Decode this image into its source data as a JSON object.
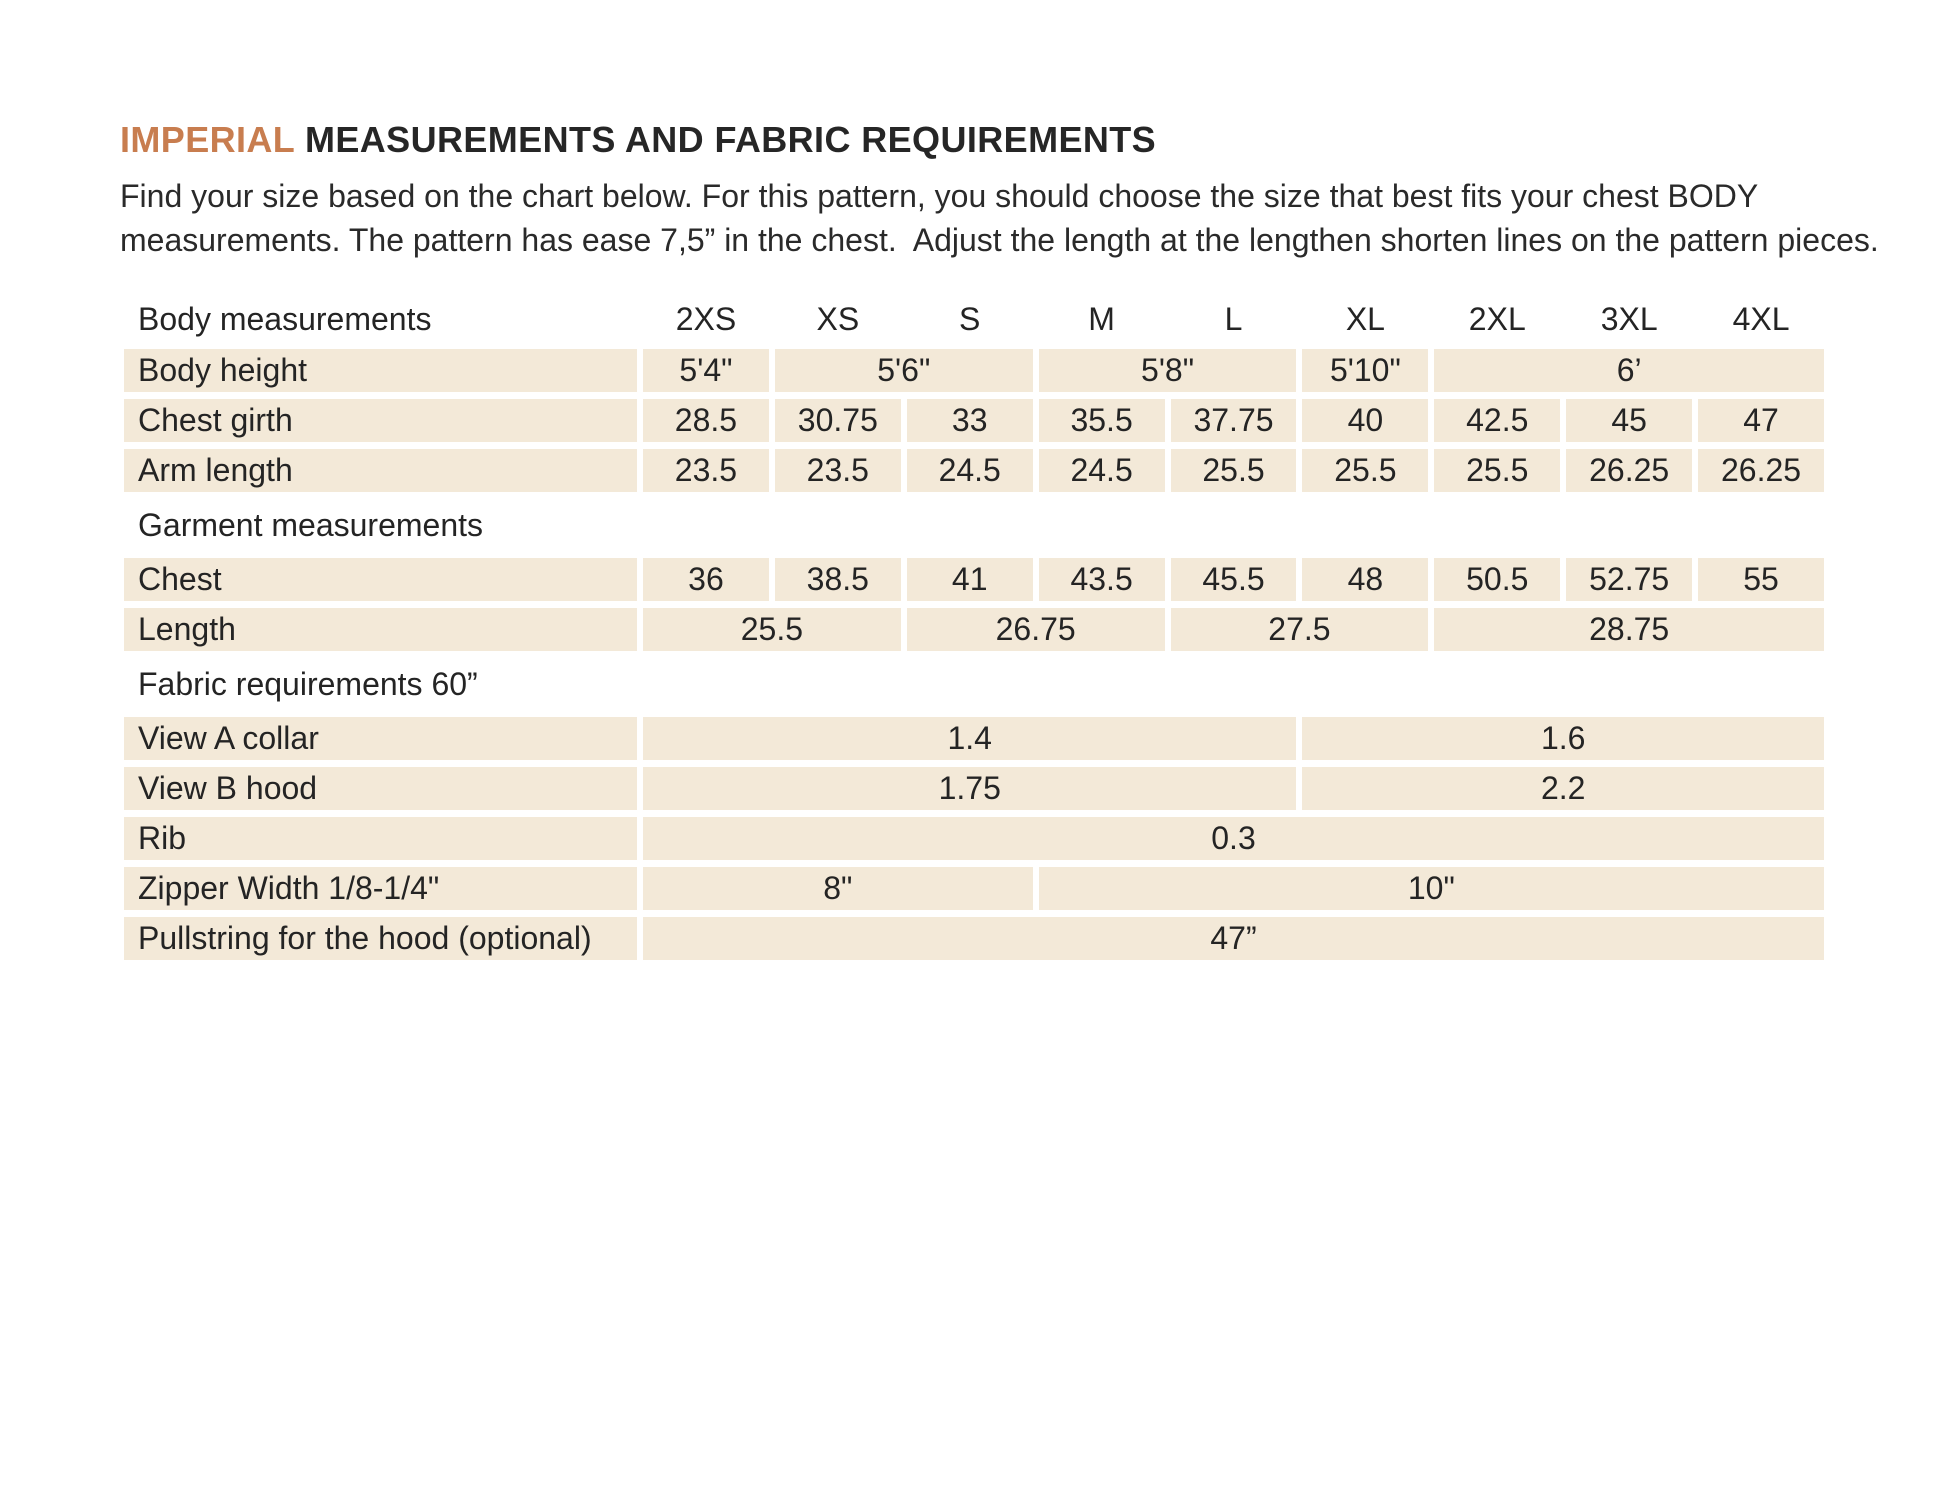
{
  "title": {
    "highlight": "IMPERIAL",
    "rest": " MEASUREMENTS AND FABRIC REQUIREMENTS"
  },
  "intro": "Find your size based on the chart below. For this pattern, you should choose the size that best fits your chest BODY measurements. The pattern has ease 7,5” in the chest.  Adjust the length at the lengthen shorten lines on the pattern pieces.",
  "colors": {
    "accent_orange": "#c87d4f",
    "row_beige": "#f3e9d8",
    "text_dark": "#262626"
  },
  "table": {
    "size_columns": [
      "2XS",
      "XS",
      "S",
      "M",
      "L",
      "XL",
      "2XL",
      "3XL",
      "4XL"
    ],
    "rows": [
      {
        "name": "header-row",
        "cells": [
          {
            "t": "Body measurements",
            "k": "colhead-label"
          },
          {
            "t": "2XS",
            "k": "colhead"
          },
          {
            "t": "XS",
            "k": "colhead"
          },
          {
            "t": "S",
            "k": "colhead"
          },
          {
            "t": "M",
            "k": "colhead"
          },
          {
            "t": "L",
            "k": "colhead"
          },
          {
            "t": "XL",
            "k": "colhead"
          },
          {
            "t": "2XL",
            "k": "colhead"
          },
          {
            "t": "3XL",
            "k": "colhead"
          },
          {
            "t": "4XL",
            "k": "colhead"
          }
        ]
      },
      {
        "name": "row-body-height",
        "cells": [
          {
            "t": "Body height",
            "k": "label"
          },
          {
            "t": "5'4\"",
            "k": "data",
            "s": 1
          },
          {
            "t": "5'6\"",
            "k": "data",
            "s": 2
          },
          {
            "t": "5'8\"",
            "k": "data",
            "s": 2
          },
          {
            "t": "5'10\"",
            "k": "data",
            "s": 1
          },
          {
            "t": "6’",
            "k": "data",
            "s": 3
          }
        ]
      },
      {
        "name": "row-chest-girth",
        "cells": [
          {
            "t": "Chest girth",
            "k": "label"
          },
          {
            "t": "28.5",
            "k": "data"
          },
          {
            "t": "30.75",
            "k": "data"
          },
          {
            "t": "33",
            "k": "data"
          },
          {
            "t": "35.5",
            "k": "data"
          },
          {
            "t": "37.75",
            "k": "data"
          },
          {
            "t": "40",
            "k": "data"
          },
          {
            "t": "42.5",
            "k": "data"
          },
          {
            "t": "45",
            "k": "data"
          },
          {
            "t": "47",
            "k": "data"
          }
        ]
      },
      {
        "name": "row-arm-length",
        "cells": [
          {
            "t": "Arm length",
            "k": "label"
          },
          {
            "t": "23.5",
            "k": "data"
          },
          {
            "t": "23.5",
            "k": "data"
          },
          {
            "t": "24.5",
            "k": "data"
          },
          {
            "t": "24.5",
            "k": "data"
          },
          {
            "t": "25.5",
            "k": "data"
          },
          {
            "t": "25.5",
            "k": "data"
          },
          {
            "t": "25.5",
            "k": "data"
          },
          {
            "t": "26.25",
            "k": "data"
          },
          {
            "t": "26.25",
            "k": "data"
          }
        ]
      },
      {
        "name": "section-garment-measurements",
        "cells": [
          {
            "t": "Garment measurements",
            "k": "section",
            "s": 10
          }
        ]
      },
      {
        "name": "row-chest",
        "cells": [
          {
            "t": "Chest",
            "k": "label"
          },
          {
            "t": "36",
            "k": "data"
          },
          {
            "t": "38.5",
            "k": "data"
          },
          {
            "t": "41",
            "k": "data"
          },
          {
            "t": "43.5",
            "k": "data"
          },
          {
            "t": "45.5",
            "k": "data"
          },
          {
            "t": "48",
            "k": "data"
          },
          {
            "t": "50.5",
            "k": "data"
          },
          {
            "t": "52.75",
            "k": "data"
          },
          {
            "t": "55",
            "k": "data"
          }
        ]
      },
      {
        "name": "row-length",
        "cells": [
          {
            "t": "Length",
            "k": "label"
          },
          {
            "t": "25.5",
            "k": "data",
            "s": 2
          },
          {
            "t": "26.75",
            "k": "data",
            "s": 2
          },
          {
            "t": "27.5",
            "k": "data",
            "s": 2
          },
          {
            "t": "28.75",
            "k": "data",
            "s": 3
          }
        ]
      },
      {
        "name": "section-fabric-requirements",
        "cells": [
          {
            "t": "Fabric requirements 60”",
            "k": "section",
            "s": 10
          }
        ]
      },
      {
        "name": "row-view-a-collar",
        "cells": [
          {
            "t": "View A collar",
            "k": "label"
          },
          {
            "t": "1.4",
            "k": "data",
            "s": 5
          },
          {
            "t": "1.6",
            "k": "data",
            "s": 4
          }
        ]
      },
      {
        "name": "row-view-b-hood",
        "cells": [
          {
            "t": "View B hood",
            "k": "label"
          },
          {
            "t": "1.75",
            "k": "data",
            "s": 5
          },
          {
            "t": "2.2",
            "k": "data",
            "s": 4
          }
        ]
      },
      {
        "name": "row-rib",
        "cells": [
          {
            "t": "Rib",
            "k": "label"
          },
          {
            "t": "0.3",
            "k": "data",
            "s": 9
          }
        ]
      },
      {
        "name": "row-zipper-width",
        "cells": [
          {
            "t": "Zipper Width 1/8-1/4\"",
            "k": "label"
          },
          {
            "t": "8\"",
            "k": "data",
            "s": 3
          },
          {
            "t": "10\"",
            "k": "data",
            "s": 6
          }
        ]
      },
      {
        "name": "row-pullstring",
        "cells": [
          {
            "t": "Pullstring for the hood (optional)",
            "k": "label"
          },
          {
            "t": "47”",
            "k": "data",
            "s": 9
          }
        ]
      }
    ]
  }
}
